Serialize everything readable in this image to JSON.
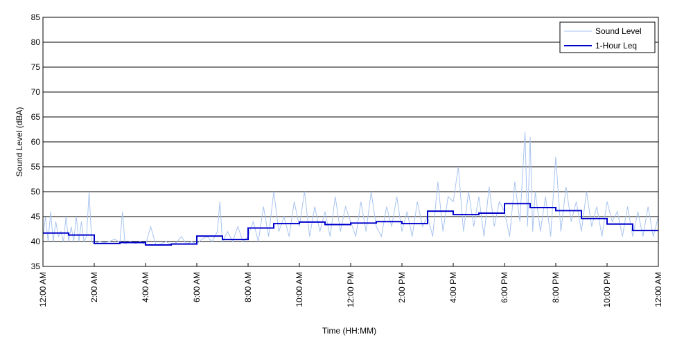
{
  "chart_data": {
    "type": "line",
    "title": "",
    "xlabel": "Time (HH:MM)",
    "ylabel": "Sound Level (dBA)",
    "xlim": [
      0,
      24
    ],
    "ylim": [
      35,
      85
    ],
    "grid": "horizontal",
    "legend_position": "top-right",
    "x_tick_values": [
      0,
      2,
      4,
      6,
      8,
      10,
      12,
      14,
      16,
      18,
      20,
      22,
      24
    ],
    "x_tick_labels": [
      "12:00 AM",
      "2:00 AM",
      "4:00 AM",
      "6:00 AM",
      "8:00 AM",
      "10:00 AM",
      "12:00 PM",
      "2:00 PM",
      "4:00 PM",
      "6:00 PM",
      "8:00 PM",
      "10:00 PM",
      "12:00 AM"
    ],
    "y_ticks": [
      35,
      40,
      45,
      50,
      55,
      60,
      65,
      70,
      75,
      80,
      85
    ],
    "series": [
      {
        "name": "Sound Level",
        "color": "#a8c4f0",
        "style": "thin-line",
        "x": [
          0.0,
          0.1,
          0.2,
          0.3,
          0.4,
          0.5,
          0.6,
          0.7,
          0.8,
          0.9,
          1.0,
          1.1,
          1.2,
          1.3,
          1.4,
          1.5,
          1.6,
          1.7,
          1.8,
          1.9,
          2.0,
          2.2,
          2.4,
          2.6,
          2.8,
          3.0,
          3.1,
          3.2,
          3.4,
          3.6,
          3.8,
          4.0,
          4.2,
          4.4,
          4.6,
          4.8,
          5.0,
          5.2,
          5.4,
          5.6,
          5.8,
          6.0,
          6.2,
          6.4,
          6.6,
          6.8,
          6.9,
          7.0,
          7.2,
          7.4,
          7.6,
          7.8,
          8.0,
          8.2,
          8.4,
          8.6,
          8.8,
          9.0,
          9.2,
          9.4,
          9.6,
          9.8,
          10.0,
          10.2,
          10.4,
          10.6,
          10.8,
          11.0,
          11.2,
          11.4,
          11.6,
          11.8,
          12.0,
          12.2,
          12.4,
          12.6,
          12.8,
          13.0,
          13.2,
          13.4,
          13.6,
          13.8,
          14.0,
          14.2,
          14.4,
          14.6,
          14.8,
          15.0,
          15.2,
          15.4,
          15.6,
          15.8,
          16.0,
          16.2,
          16.4,
          16.6,
          16.8,
          17.0,
          17.2,
          17.4,
          17.6,
          17.8,
          18.0,
          18.2,
          18.4,
          18.6,
          18.8,
          18.9,
          19.0,
          19.1,
          19.2,
          19.4,
          19.6,
          19.8,
          20.0,
          20.2,
          20.4,
          20.6,
          20.8,
          21.0,
          21.2,
          21.4,
          21.6,
          21.8,
          22.0,
          22.2,
          22.4,
          22.6,
          22.8,
          23.0,
          23.2,
          23.4,
          23.6,
          23.8,
          24.0
        ],
        "values": [
          41,
          45,
          40,
          46,
          40,
          44,
          41,
          42,
          40,
          45,
          40,
          43,
          40,
          45,
          40,
          44,
          40,
          41,
          50,
          40,
          39.5,
          40,
          39.8,
          40,
          40.5,
          39.8,
          46,
          39.5,
          40,
          39.6,
          40,
          39.3,
          43,
          39.4,
          39.5,
          40,
          39.3,
          39.8,
          41,
          39.5,
          40,
          39.5,
          40.5,
          41,
          40,
          42,
          48,
          40,
          42,
          40,
          43,
          40,
          41,
          44,
          40,
          47,
          41,
          50,
          42,
          45,
          41,
          48,
          43,
          50,
          41,
          47,
          42,
          46,
          41,
          49,
          42,
          47,
          44,
          41,
          48,
          42,
          50,
          43,
          41,
          47,
          43,
          49,
          42,
          46,
          41,
          48,
          43,
          45,
          41,
          52,
          42,
          49,
          48,
          55,
          42,
          50,
          43,
          49,
          41,
          51,
          43,
          48,
          46,
          41,
          52,
          44,
          62,
          43,
          61,
          42,
          50,
          42,
          49,
          41,
          57,
          42,
          51,
          44,
          48,
          42,
          50,
          43,
          47,
          41,
          48,
          44,
          46,
          41,
          47,
          41,
          46,
          41,
          47,
          41,
          45
        ]
      },
      {
        "name": "1-Hour Leq",
        "color": "#0000cc",
        "style": "step",
        "x": [
          0,
          1,
          2,
          3,
          4,
          5,
          6,
          7,
          8,
          9,
          10,
          11,
          12,
          13,
          14,
          15,
          16,
          17,
          18,
          19,
          20,
          21,
          22,
          23,
          24
        ],
        "values": [
          41.7,
          41.3,
          39.6,
          39.8,
          39.3,
          39.5,
          41.1,
          40.4,
          42.7,
          43.6,
          43.9,
          43.4,
          43.7,
          44.0,
          43.6,
          46.1,
          45.4,
          45.7,
          47.6,
          46.8,
          46.2,
          44.6,
          43.5,
          42.2,
          42.2
        ]
      }
    ]
  }
}
